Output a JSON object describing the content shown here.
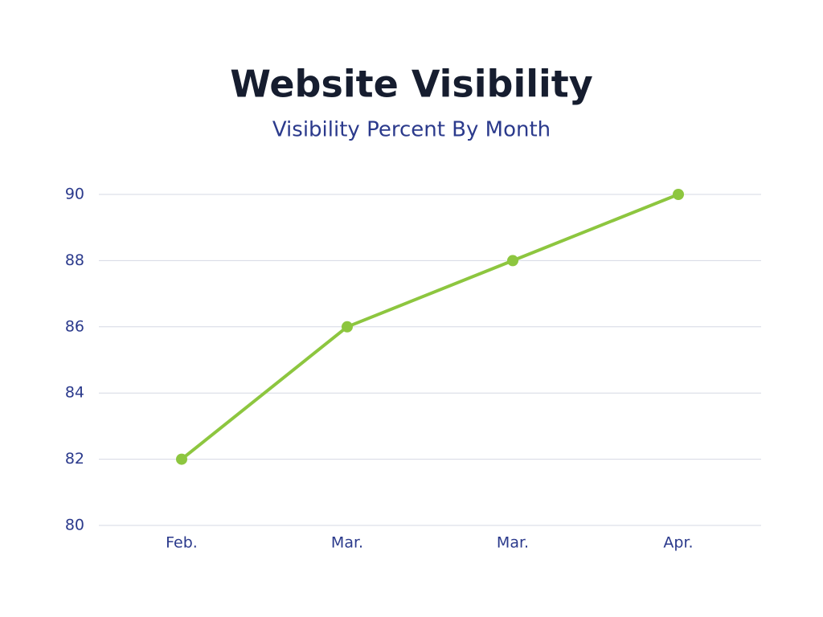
{
  "chart_data": {
    "type": "line",
    "title": "Website Visibility",
    "subtitle": "Visibility Percent By Month",
    "categories": [
      "Feb.",
      "Mar.",
      "Mar.",
      "Apr."
    ],
    "series": [
      {
        "color": "#8dc63f",
        "values": [
          82,
          86,
          88,
          90
        ]
      }
    ],
    "ylim": [
      80,
      90
    ],
    "yticks": [
      80,
      82,
      84,
      86,
      88,
      90
    ],
    "grid": true
  }
}
